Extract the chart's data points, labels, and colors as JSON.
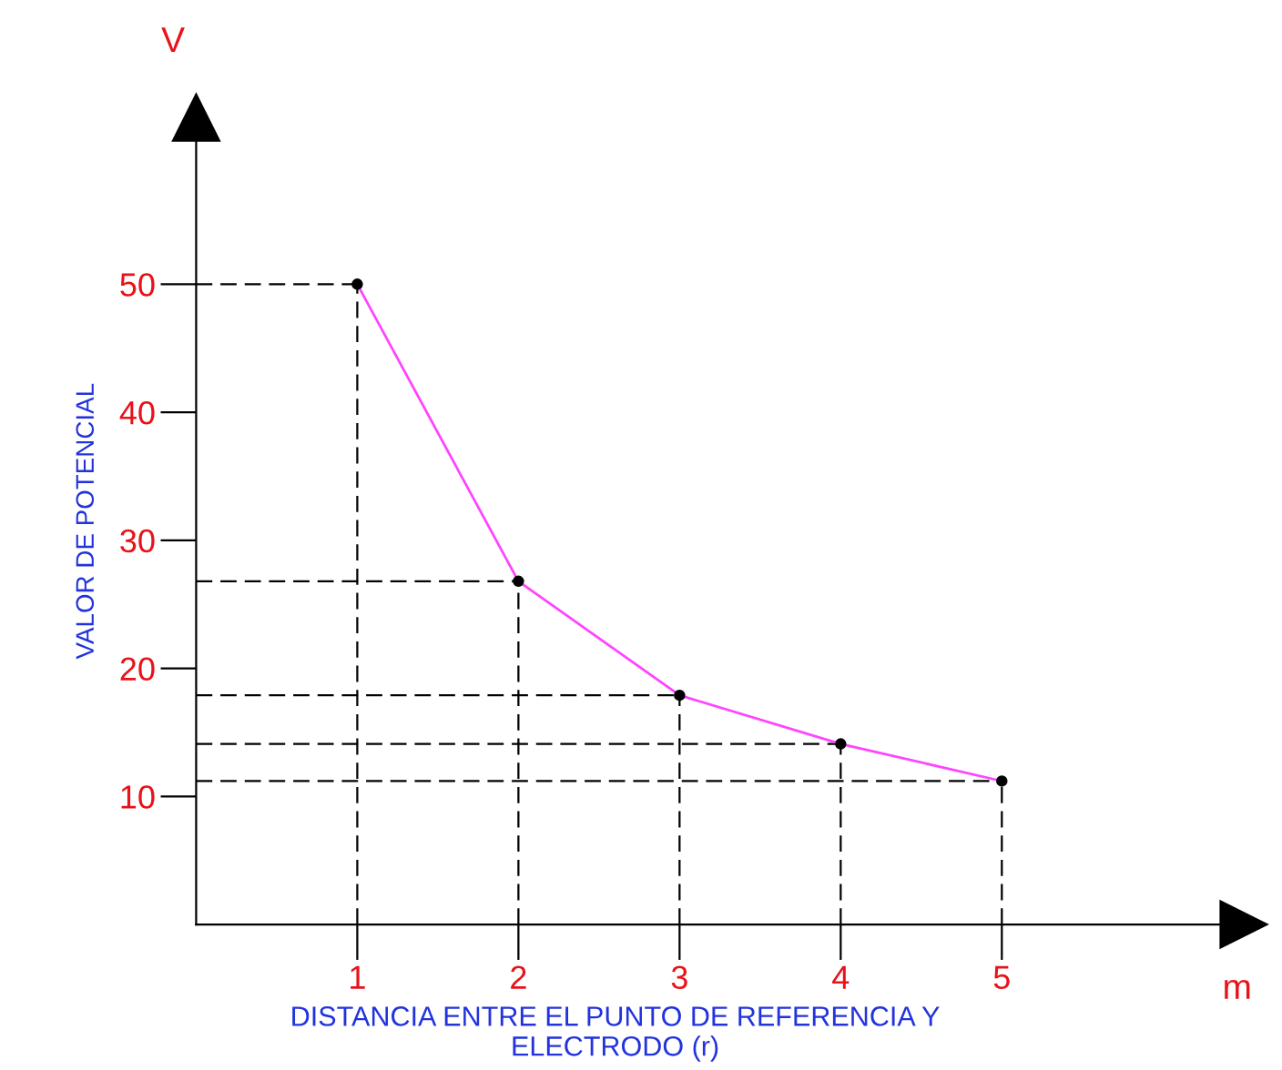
{
  "chart_data": {
    "type": "line",
    "xlabel": "DISTANCIA ENTRE EL PUNTO DE REFERENCIA Y\nELECTRODO (r)",
    "ylabel": "VALOR DE POTENCIAL",
    "annotations": [
      "V",
      "m"
    ],
    "x": [
      1,
      2,
      3,
      4,
      5
    ],
    "series": [
      {
        "color": "#ff44ff",
        "values": [
          50,
          26.8,
          17.9,
          14.1,
          11.2
        ]
      }
    ],
    "marker": "circle",
    "line_style": "solid",
    "xlim": [
      0,
      6.5
    ],
    "ylim": [
      0,
      63
    ],
    "xticks": [
      1,
      2,
      3,
      4,
      5
    ],
    "yticks": [
      10,
      20,
      30,
      40,
      50
    ],
    "grid": false,
    "legend": false,
    "ref_lines": [
      {
        "axis": "y",
        "value": 50,
        "color": "#000000",
        "line_style": "dashed"
      },
      {
        "axis": "y",
        "value": 26.8,
        "color": "#000000",
        "line_style": "dashed"
      },
      {
        "axis": "y",
        "value": 17.9,
        "color": "#000000",
        "line_style": "dashed"
      },
      {
        "axis": "y",
        "value": 14.1,
        "color": "#000000",
        "line_style": "dashed"
      },
      {
        "axis": "y",
        "value": 11.2,
        "color": "#000000",
        "line_style": "dashed"
      },
      {
        "axis": "x",
        "value": 1,
        "color": "#000000",
        "line_style": "dashed"
      },
      {
        "axis": "x",
        "value": 2,
        "color": "#000000",
        "line_style": "dashed"
      },
      {
        "axis": "x",
        "value": 3,
        "color": "#000000",
        "line_style": "dashed"
      },
      {
        "axis": "x",
        "value": 4,
        "color": "#000000",
        "line_style": "dashed"
      },
      {
        "axis": "x",
        "value": 5,
        "color": "#000000",
        "line_style": "dashed"
      }
    ]
  }
}
